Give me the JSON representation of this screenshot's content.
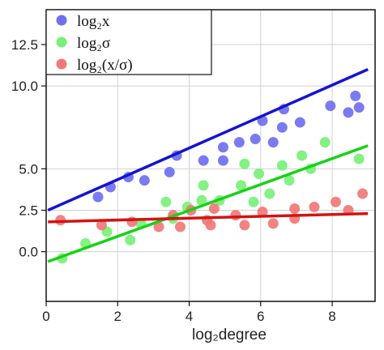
{
  "chart_data": {
    "type": "scatter",
    "title": "",
    "xlabel": "log₂degree",
    "ylabel": "",
    "xlim": [
      0,
      9.2
    ],
    "ylim": [
      -3,
      14.6
    ],
    "x_ticks": [
      0,
      2,
      4,
      6,
      8
    ],
    "y_ticks": [
      0.0,
      2.5,
      5.0,
      10.0,
      12.5
    ],
    "y_tick_labels": [
      "0.0",
      "2.5",
      "5.0",
      "10.0",
      "12.5"
    ],
    "grid": true,
    "legend_position": "top-left",
    "series": [
      {
        "name": "log₂x",
        "color": "#6f6ff0",
        "line_color": "#1414d2",
        "fit": {
          "x0": 0.05,
          "y0": 2.5,
          "x1": 9.0,
          "y1": 11.0
        },
        "points": [
          [
            1.45,
            3.3
          ],
          [
            1.8,
            3.9
          ],
          [
            2.3,
            4.5
          ],
          [
            2.75,
            4.3
          ],
          [
            3.45,
            4.8
          ],
          [
            3.65,
            5.8
          ],
          [
            4.4,
            5.5
          ],
          [
            4.95,
            6.3
          ],
          [
            4.95,
            5.5
          ],
          [
            5.4,
            6.6
          ],
          [
            5.85,
            6.8
          ],
          [
            6.05,
            7.9
          ],
          [
            6.35,
            6.6
          ],
          [
            6.6,
            7.5
          ],
          [
            6.65,
            8.6
          ],
          [
            7.1,
            7.8
          ],
          [
            7.95,
            8.8
          ],
          [
            8.45,
            8.4
          ],
          [
            8.65,
            9.4
          ],
          [
            8.75,
            8.7
          ]
        ]
      },
      {
        "name": "log₂σ",
        "color": "#78f078",
        "line_color": "#16d216",
        "fit": {
          "x0": 0.05,
          "y0": -0.6,
          "x1": 9.0,
          "y1": 6.4
        },
        "points": [
          [
            0.45,
            -0.4
          ],
          [
            1.1,
            0.5
          ],
          [
            1.7,
            1.2
          ],
          [
            2.35,
            0.7
          ],
          [
            2.65,
            1.7
          ],
          [
            3.35,
            3.0
          ],
          [
            3.55,
            2.0
          ],
          [
            3.95,
            2.7
          ],
          [
            4.35,
            3.1
          ],
          [
            4.4,
            4.0
          ],
          [
            4.85,
            3.1
          ],
          [
            5.45,
            4.0
          ],
          [
            5.55,
            5.3
          ],
          [
            5.8,
            3.0
          ],
          [
            5.95,
            4.7
          ],
          [
            6.25,
            3.5
          ],
          [
            6.6,
            5.2
          ],
          [
            6.8,
            4.3
          ],
          [
            7.15,
            5.8
          ],
          [
            7.4,
            5.0
          ],
          [
            7.8,
            6.6
          ],
          [
            8.75,
            5.6
          ]
        ]
      },
      {
        "name": "log₂(x/σ)",
        "color": "#f07878",
        "line_color": "#d21414",
        "fit": {
          "x0": 0.05,
          "y0": 1.8,
          "x1": 9.0,
          "y1": 2.3
        },
        "points": [
          [
            0.4,
            1.9
          ],
          [
            1.55,
            1.6
          ],
          [
            2.4,
            1.8
          ],
          [
            3.15,
            1.5
          ],
          [
            3.55,
            2.2
          ],
          [
            3.75,
            1.5
          ],
          [
            4.05,
            2.5
          ],
          [
            4.5,
            1.9
          ],
          [
            4.6,
            1.6
          ],
          [
            4.7,
            2.6
          ],
          [
            5.3,
            2.2
          ],
          [
            5.55,
            1.6
          ],
          [
            6.05,
            2.4
          ],
          [
            6.35,
            1.7
          ],
          [
            6.95,
            2.6
          ],
          [
            6.95,
            2.0
          ],
          [
            7.5,
            2.7
          ],
          [
            8.1,
            3.0
          ],
          [
            8.45,
            2.5
          ],
          [
            8.85,
            3.5
          ]
        ]
      }
    ]
  }
}
